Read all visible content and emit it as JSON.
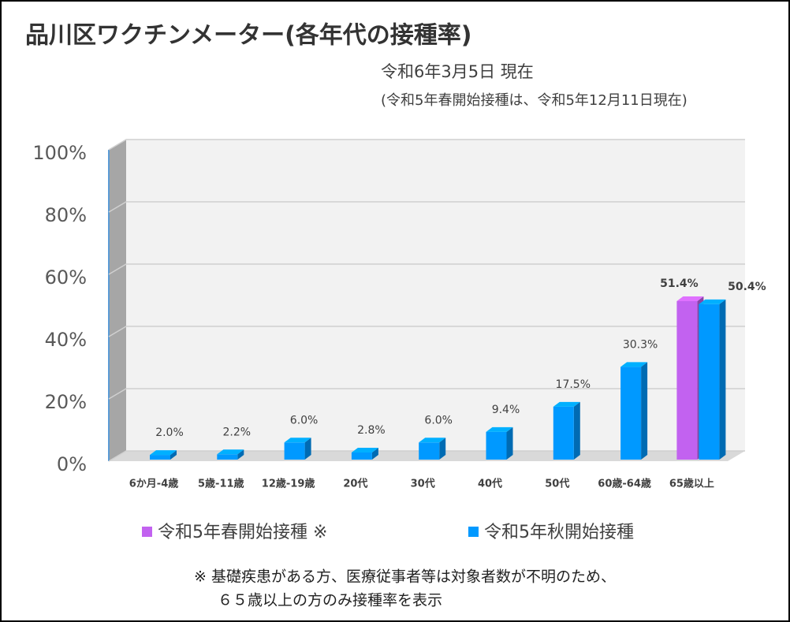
{
  "chart_data": {
    "type": "bar3d",
    "title": "品川区ワクチンメーター(各年代の接種率)",
    "subtitles": [
      "令和6年3月5日 現在",
      "(令和5年春開始接種は、令和5年12月11日現在)"
    ],
    "categories": [
      "6か月-4歳",
      "5歳-11歳",
      "12歳-19歳",
      "20代",
      "30代",
      "40代",
      "50代",
      "60歳-64歳",
      "65歳以上"
    ],
    "series": [
      {
        "name": "令和5年春開始接種 ※",
        "color": "#c262f0",
        "values": [
          null,
          null,
          null,
          null,
          null,
          null,
          null,
          null,
          51.4
        ],
        "value_labels": [
          null,
          null,
          null,
          null,
          null,
          null,
          null,
          null,
          "51.4%"
        ]
      },
      {
        "name": "令和5年秋開始接種",
        "color": "#0099ff",
        "values": [
          2.0,
          2.2,
          6.0,
          2.8,
          6.0,
          9.4,
          17.5,
          30.3,
          50.4
        ],
        "value_labels": [
          "2.0%",
          "2.2%",
          "6.0%",
          "2.8%",
          "6.0%",
          "9.4%",
          "17.5%",
          "30.3%",
          "50.4%"
        ]
      }
    ],
    "ylim": [
      0,
      100
    ],
    "yticks": [
      {
        "value": 0,
        "label": "0%"
      },
      {
        "value": 20,
        "label": "20%"
      },
      {
        "value": 40,
        "label": "40%"
      },
      {
        "value": 60,
        "label": "60%"
      },
      {
        "value": 80,
        "label": "80%"
      },
      {
        "value": 100,
        "label": "100%"
      }
    ],
    "grid": true,
    "notes": [
      "※ 基礎疾患がある方、医療従事者等は対象者数が不明のため、",
      "６５歳以上の方のみ接種率を表示"
    ]
  }
}
